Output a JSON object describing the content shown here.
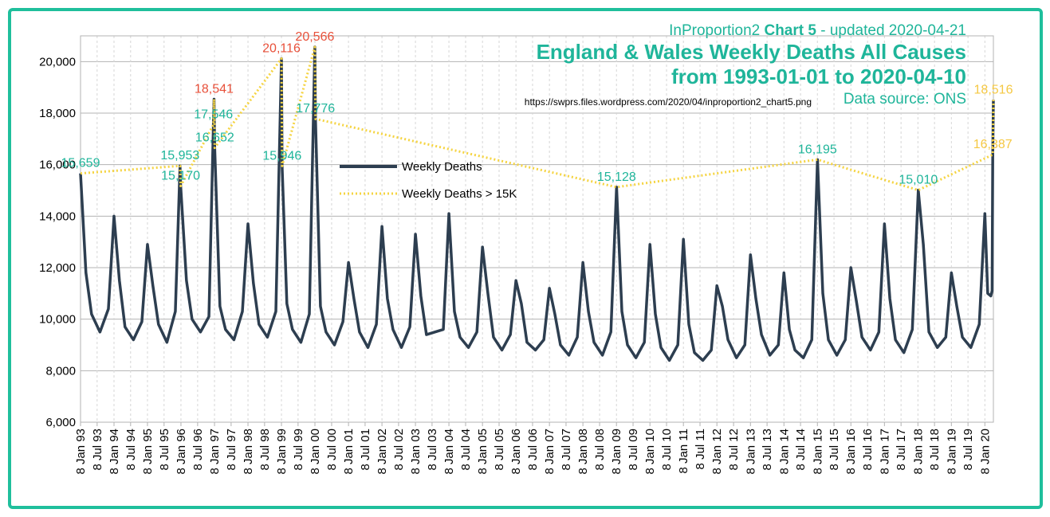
{
  "chart_data": {
    "type": "line",
    "title_prefix": "InProportion2",
    "title_bold": "Chart 5",
    "title_suffix": "- updated 2020-04-21",
    "title": "England & Wales Weekly Deaths All Causes",
    "subtitle": "from 1993-01-01 to 2020-04-10",
    "url": "https://swprs.files.wordpress.com/2020/04/inproportion2_chart5.png",
    "source": "Data source: ONS",
    "xlim": [
      "1993-01-08",
      "2020-04-10"
    ],
    "ylim": [
      6000,
      21000
    ],
    "yticks": [
      {
        "value": 6000,
        "label": "6,000"
      },
      {
        "value": 8000,
        "label": "8,000"
      },
      {
        "value": 10000,
        "label": "10,000"
      },
      {
        "value": 12000,
        "label": "12,000"
      },
      {
        "value": 14000,
        "label": "14,000"
      },
      {
        "value": 16000,
        "label": "16,000"
      },
      {
        "value": 18000,
        "label": "18,000"
      },
      {
        "value": 20000,
        "label": "20,000"
      }
    ],
    "xticks": [
      {
        "value": "1993-01-08",
        "label": "8 Jan 93"
      },
      {
        "value": "1993-07-08",
        "label": "8 Jul 93"
      },
      {
        "value": "1994-01-08",
        "label": "8 Jan 94"
      },
      {
        "value": "1994-07-08",
        "label": "8 Jul 94"
      },
      {
        "value": "1995-01-08",
        "label": "8 Jan 95"
      },
      {
        "value": "1995-07-08",
        "label": "8 Jul 95"
      },
      {
        "value": "1996-01-08",
        "label": "8 Jan 96"
      },
      {
        "value": "1996-07-08",
        "label": "8 Jul 96"
      },
      {
        "value": "1997-01-08",
        "label": "8 Jan 97"
      },
      {
        "value": "1997-07-08",
        "label": "8 Jul 97"
      },
      {
        "value": "1998-01-08",
        "label": "8 Jan 98"
      },
      {
        "value": "1998-07-08",
        "label": "8 Jul 98"
      },
      {
        "value": "1999-01-08",
        "label": "8 Jan 99"
      },
      {
        "value": "1999-07-08",
        "label": "8 Jul 99"
      },
      {
        "value": "2000-01-08",
        "label": "8 Jan 00"
      },
      {
        "value": "2000-07-08",
        "label": "8 Jul 00"
      },
      {
        "value": "2001-01-08",
        "label": "8 Jan 01"
      },
      {
        "value": "2001-07-08",
        "label": "8 Jul 01"
      },
      {
        "value": "2002-01-08",
        "label": "8 Jan 02"
      },
      {
        "value": "2002-07-08",
        "label": "8 Jul 02"
      },
      {
        "value": "2003-01-08",
        "label": "8 Jan 03"
      },
      {
        "value": "2003-07-08",
        "label": "8 Jul 03"
      },
      {
        "value": "2004-01-08",
        "label": "8 Jan 04"
      },
      {
        "value": "2004-07-08",
        "label": "8 Jul 04"
      },
      {
        "value": "2005-01-08",
        "label": "8 Jan 05"
      },
      {
        "value": "2005-07-08",
        "label": "8 Jul 05"
      },
      {
        "value": "2006-01-08",
        "label": "8 Jan 06"
      },
      {
        "value": "2006-07-08",
        "label": "8 Jul 06"
      },
      {
        "value": "2007-01-08",
        "label": "8 Jan 07"
      },
      {
        "value": "2007-07-08",
        "label": "8 Jul 07"
      },
      {
        "value": "2008-01-08",
        "label": "8 Jan 08"
      },
      {
        "value": "2008-07-08",
        "label": "8 Jul 08"
      },
      {
        "value": "2009-01-08",
        "label": "8 Jan 09"
      },
      {
        "value": "2009-07-08",
        "label": "8 Jul 09"
      },
      {
        "value": "2010-01-08",
        "label": "8 Jan 10"
      },
      {
        "value": "2010-07-08",
        "label": "8 Jul 10"
      },
      {
        "value": "2011-01-08",
        "label": "8 Jan 11"
      },
      {
        "value": "2011-07-08",
        "label": "8 Jul 11"
      },
      {
        "value": "2012-01-08",
        "label": "8 Jan 12"
      },
      {
        "value": "2012-07-08",
        "label": "8 Jul 12"
      },
      {
        "value": "2013-01-08",
        "label": "8 Jan 13"
      },
      {
        "value": "2013-07-08",
        "label": "8 Jul 13"
      },
      {
        "value": "2014-01-08",
        "label": "8 Jan 14"
      },
      {
        "value": "2014-07-08",
        "label": "8 Jul 14"
      },
      {
        "value": "2015-01-08",
        "label": "8 Jan 15"
      },
      {
        "value": "2015-07-08",
        "label": "8 Jul 15"
      },
      {
        "value": "2016-01-08",
        "label": "8 Jan 16"
      },
      {
        "value": "2016-07-08",
        "label": "8 Jul 16"
      },
      {
        "value": "2017-01-08",
        "label": "8 Jan 17"
      },
      {
        "value": "2017-07-08",
        "label": "8 Jul 17"
      },
      {
        "value": "2018-01-08",
        "label": "8 Jan 18"
      },
      {
        "value": "2018-07-08",
        "label": "8 Jul 18"
      },
      {
        "value": "2019-01-08",
        "label": "8 Jan 19"
      },
      {
        "value": "2019-07-08",
        "label": "8 Jul 19"
      },
      {
        "value": "2020-01-08",
        "label": "8 Jan 20"
      }
    ],
    "grid": true,
    "series": [
      {
        "name": "Weekly Deaths",
        "color": "#2d3e50",
        "x": [
          "1993-01-08",
          "1993-03-08",
          "1993-05-08",
          "1993-08-08",
          "1993-11-08",
          "1994-01-08",
          "1994-03-08",
          "1994-05-08",
          "1994-08-08",
          "1994-11-08",
          "1995-01-08",
          "1995-03-08",
          "1995-05-08",
          "1995-08-08",
          "1995-11-08",
          "1995-12-29",
          "1996-01-05",
          "1996-03-08",
          "1996-05-08",
          "1996-08-08",
          "1996-11-08",
          "1996-12-27",
          "1997-01-03",
          "1997-01-10",
          "1997-03-08",
          "1997-05-08",
          "1997-08-08",
          "1997-11-08",
          "1998-01-08",
          "1998-03-08",
          "1998-05-08",
          "1998-08-08",
          "1998-11-08",
          "1999-01-08",
          "1999-01-15",
          "1999-03-08",
          "1999-05-08",
          "1999-08-08",
          "1999-11-08",
          "2000-01-07",
          "2000-01-14",
          "2000-03-08",
          "2000-05-08",
          "2000-08-08",
          "2000-11-08",
          "2001-01-08",
          "2001-03-08",
          "2001-05-08",
          "2001-08-08",
          "2001-11-08",
          "2002-01-08",
          "2002-03-08",
          "2002-05-08",
          "2002-08-08",
          "2002-11-08",
          "2003-01-08",
          "2003-03-08",
          "2003-05-08",
          "2003-08-08",
          "2003-11-08",
          "2004-01-08",
          "2004-03-08",
          "2004-05-08",
          "2004-08-08",
          "2004-11-08",
          "2005-01-08",
          "2005-03-08",
          "2005-05-08",
          "2005-08-08",
          "2005-11-08",
          "2006-01-08",
          "2006-03-08",
          "2006-05-08",
          "2006-08-08",
          "2006-11-08",
          "2007-01-08",
          "2007-03-08",
          "2007-05-08",
          "2007-08-08",
          "2007-11-08",
          "2008-01-08",
          "2008-03-08",
          "2008-05-08",
          "2008-08-08",
          "2008-11-08",
          "2009-01-09",
          "2009-03-08",
          "2009-05-08",
          "2009-08-08",
          "2009-11-08",
          "2010-01-08",
          "2010-03-08",
          "2010-05-08",
          "2010-08-08",
          "2010-11-08",
          "2011-01-08",
          "2011-03-08",
          "2011-05-08",
          "2011-08-08",
          "2011-11-08",
          "2012-01-08",
          "2012-03-08",
          "2012-05-08",
          "2012-08-08",
          "2012-11-08",
          "2013-01-08",
          "2013-03-08",
          "2013-05-08",
          "2013-08-08",
          "2013-11-08",
          "2014-01-08",
          "2014-03-08",
          "2014-05-08",
          "2014-08-08",
          "2014-11-08",
          "2015-01-09",
          "2015-03-08",
          "2015-05-08",
          "2015-08-08",
          "2015-11-08",
          "2016-01-08",
          "2016-03-08",
          "2016-05-08",
          "2016-08-08",
          "2016-11-08",
          "2017-01-08",
          "2017-03-08",
          "2017-05-08",
          "2017-08-08",
          "2017-11-08",
          "2018-01-12",
          "2018-03-08",
          "2018-05-08",
          "2018-08-08",
          "2018-11-08",
          "2019-01-08",
          "2019-03-08",
          "2019-05-08",
          "2019-08-08",
          "2019-11-08",
          "2020-01-08",
          "2020-02-08",
          "2020-03-13",
          "2020-03-27",
          "2020-04-03",
          "2020-04-10"
        ],
        "values": [
          15659,
          11800,
          10200,
          9500,
          10400,
          14000,
          11500,
          9700,
          9200,
          9900,
          12900,
          11300,
          9800,
          9100,
          10300,
          15953,
          15170,
          11500,
          10000,
          9500,
          10100,
          17546,
          18541,
          16652,
          10500,
          9600,
          9200,
          10300,
          13700,
          11400,
          9800,
          9300,
          10300,
          20116,
          15946,
          10600,
          9600,
          9100,
          10200,
          20566,
          17776,
          10500,
          9500,
          9000,
          9900,
          12200,
          10800,
          9500,
          8900,
          9800,
          13600,
          10800,
          9600,
          8900,
          9700,
          13300,
          10900,
          9400,
          9500,
          9600,
          14100,
          10300,
          9300,
          8900,
          9500,
          12800,
          11000,
          9300,
          8800,
          9400,
          11500,
          10600,
          9100,
          8800,
          9200,
          11200,
          10200,
          9000,
          8600,
          9300,
          12200,
          10300,
          9100,
          8600,
          9500,
          15128,
          10300,
          9000,
          8500,
          9100,
          12900,
          10200,
          8900,
          8400,
          9000,
          13100,
          9800,
          8700,
          8400,
          8800,
          11300,
          10500,
          9200,
          8500,
          9000,
          12500,
          10800,
          9400,
          8600,
          9000,
          11800,
          9600,
          8800,
          8500,
          9200,
          16195,
          11000,
          9200,
          8600,
          9200,
          12000,
          10700,
          9300,
          8800,
          9500,
          13700,
          10800,
          9200,
          8700,
          9600,
          15010,
          12900,
          9500,
          8900,
          9300,
          11800,
          10500,
          9300,
          8900,
          9800,
          14100,
          11000,
          10900,
          11100,
          16387,
          18516
        ]
      },
      {
        "name": "Weekly Deaths > 15K",
        "color": "#f5d442",
        "x": [
          "1993-01-08",
          "1995-12-29",
          "1996-01-05",
          "1996-12-27",
          "1997-01-03",
          "1997-01-10",
          "1999-01-08",
          "1999-01-15",
          "2000-01-07",
          "2000-01-14",
          "2009-01-09",
          "2015-01-09",
          "2018-01-12",
          "2020-04-03",
          "2020-04-10"
        ],
        "values": [
          15659,
          15953,
          15170,
          17546,
          18541,
          16652,
          20116,
          15946,
          20566,
          17776,
          15128,
          16195,
          15010,
          16387,
          18516
        ],
        "value_labels": [
          "15,659",
          "15,953",
          "15,170",
          "17,546",
          "18,541",
          "16,652",
          "20,116",
          "15,946",
          "20,566",
          "17,776",
          "15,128",
          "16,195",
          "15,010",
          "16,387",
          "18,516"
        ],
        "label_colors": [
          "#1fb59a",
          "#1fb59a",
          "#1fb59a",
          "#1fb59a",
          "#e8503a",
          "#1fb59a",
          "#e8503a",
          "#1fb59a",
          "#e8503a",
          "#1fb59a",
          "#1fb59a",
          "#1fb59a",
          "#1fb59a",
          "#f5c842",
          "#f5c842"
        ]
      }
    ]
  }
}
